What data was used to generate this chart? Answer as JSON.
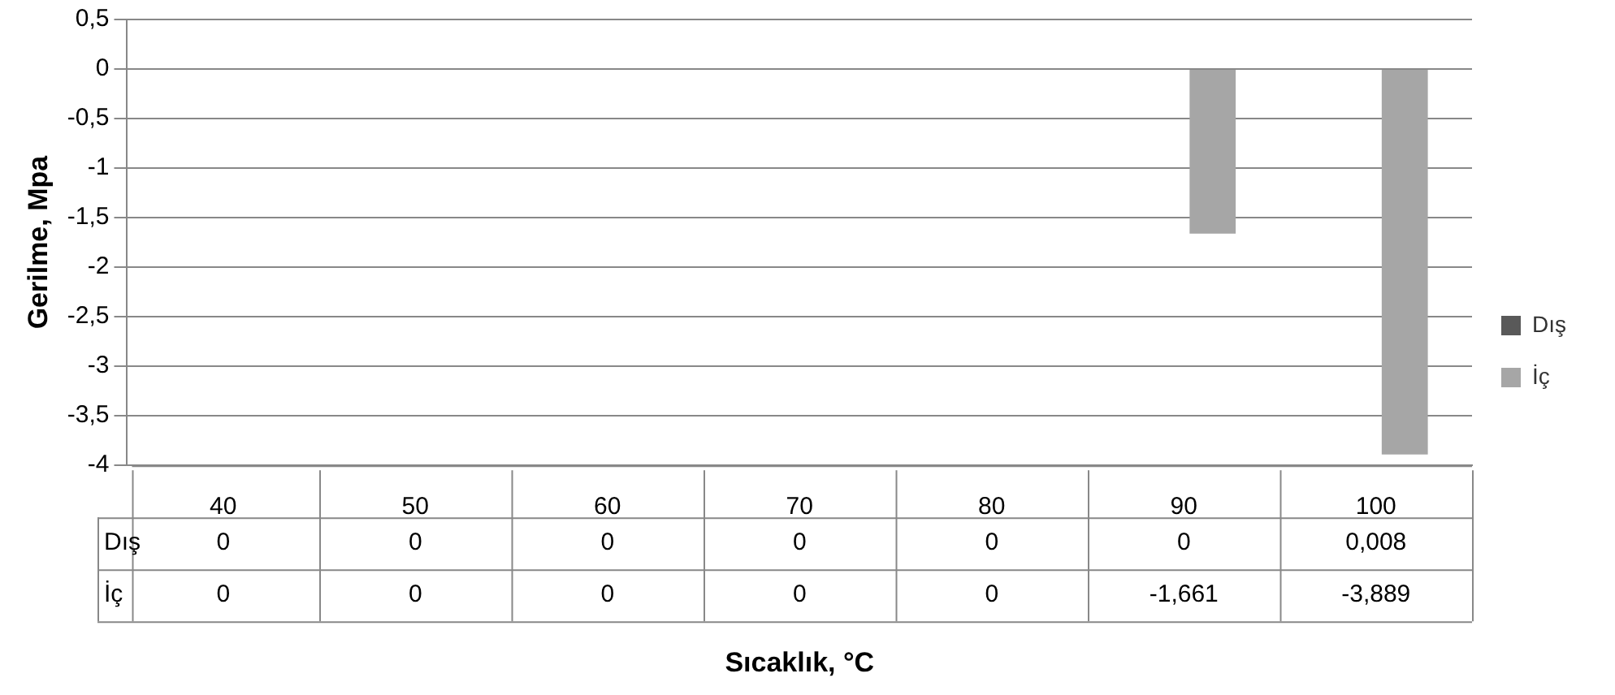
{
  "chart_data": {
    "type": "bar",
    "xlabel": "Sıcaklık, °C",
    "ylabel": "Gerilme, Mpa",
    "categories": [
      "40",
      "50",
      "60",
      "70",
      "80",
      "90",
      "100"
    ],
    "series": [
      {
        "name": "Dış",
        "color": "#595959",
        "values": [
          0,
          0,
          0,
          0,
          0,
          0,
          0.008
        ],
        "value_labels": [
          "0",
          "0",
          "0",
          "0",
          "0",
          "0",
          "0,008"
        ]
      },
      {
        "name": "İç",
        "color": "#a6a6a6",
        "values": [
          0,
          0,
          0,
          0,
          0,
          -1.661,
          -3.889
        ],
        "value_labels": [
          "0",
          "0",
          "0",
          "0",
          "0",
          "-1,661",
          "-3,889"
        ]
      }
    ],
    "ylim": [
      -4,
      0.5
    ],
    "yticks": [
      {
        "value": -4,
        "label": "-4"
      },
      {
        "value": -3.5,
        "label": "-3,5"
      },
      {
        "value": -3,
        "label": "-3"
      },
      {
        "value": -2.5,
        "label": "-2,5"
      },
      {
        "value": -2,
        "label": "-2"
      },
      {
        "value": -1.5,
        "label": "-1,5"
      },
      {
        "value": -1,
        "label": "-1"
      },
      {
        "value": -0.5,
        "label": "-0,5"
      },
      {
        "value": 0,
        "label": "0"
      },
      {
        "value": 0.5,
        "label": "0,5"
      }
    ],
    "grid": "y",
    "legend": "right"
  }
}
